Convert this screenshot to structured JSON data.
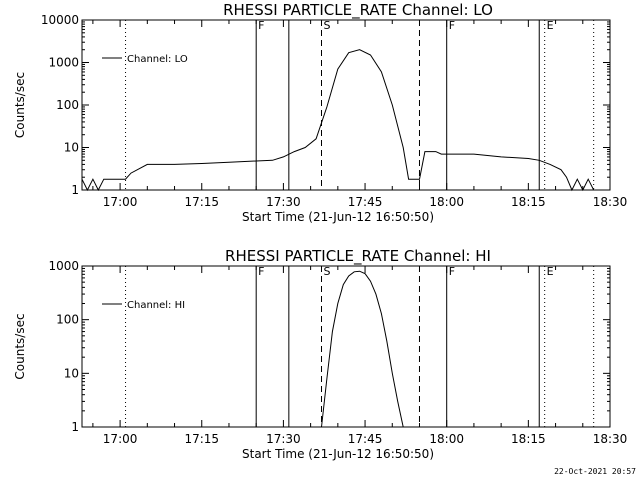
{
  "footer": {
    "timestamp": "22-Oct-2021 20:57"
  },
  "chart_data": [
    {
      "type": "line",
      "title": "RHESSI  PARTICLE_RATE  Channel:  LO",
      "xlabel": "Start Time (21-Jun-12 16:50:50)",
      "ylabel": "Counts/sec",
      "yscale": "log",
      "xlim": [
        "16:53",
        "18:30"
      ],
      "ylim": [
        1,
        10000
      ],
      "xticks": [
        "17:00",
        "17:15",
        "17:30",
        "17:45",
        "18:00",
        "18:15",
        "18:30"
      ],
      "yticks": [
        "1",
        "10",
        "100",
        "1000",
        "10000"
      ],
      "legend": {
        "label": "Channel: LO",
        "placement": "top-left"
      },
      "series": [
        {
          "name": "Channel: LO",
          "x": [
            "16:53",
            "16:54",
            "16:55",
            "16:56",
            "16:57",
            "16:58",
            "16:59",
            "17:00",
            "17:01",
            "17:02",
            "17:05",
            "17:10",
            "17:15",
            "17:20",
            "17:25",
            "17:28",
            "17:30",
            "17:32",
            "17:34",
            "17:36",
            "17:38",
            "17:40",
            "17:42",
            "17:44",
            "17:46",
            "17:48",
            "17:50",
            "17:52",
            "17:53",
            "17:54",
            "17:55",
            "17:56",
            "17:57",
            "17:58",
            "17:59",
            "18:00",
            "18:05",
            "18:10",
            "18:15",
            "18:17",
            "18:19",
            "18:21",
            "18:22",
            "18:23",
            "18:24",
            "18:25",
            "18:26",
            "18:27"
          ],
          "y": [
            1.8,
            1,
            1.8,
            1,
            1.8,
            1.8,
            1.8,
            1.8,
            1.8,
            2.5,
            4,
            4,
            4.2,
            4.5,
            4.8,
            5,
            6,
            8,
            10,
            16,
            90,
            700,
            1700,
            2000,
            1500,
            600,
            100,
            10,
            1.8,
            1.8,
            1.8,
            8,
            8,
            8,
            7,
            7,
            7,
            6,
            5.5,
            5,
            4,
            3,
            2,
            1,
            1.8,
            1,
            1.8,
            1
          ]
        }
      ],
      "annotations": [
        {
          "label": "F",
          "time": "17:25",
          "style": "solid"
        },
        {
          "label": "",
          "time": "17:31",
          "style": "solid"
        },
        {
          "label": "S",
          "time": "17:37",
          "style": "dashed"
        },
        {
          "label": "",
          "time": "17:55",
          "style": "dashed"
        },
        {
          "label": "F",
          "time": "18:00",
          "style": "solid"
        },
        {
          "label": "",
          "time": "18:17",
          "style": "solid"
        },
        {
          "label": "E",
          "time": "18:18",
          "style": "dotted"
        },
        {
          "label": "",
          "time": "17:01",
          "style": "dotted"
        },
        {
          "label": "",
          "time": "18:27",
          "style": "dotted"
        }
      ]
    },
    {
      "type": "line",
      "title": "RHESSI  PARTICLE_RATE  Channel:  HI",
      "xlabel": "Start Time (21-Jun-12 16:50:50)",
      "ylabel": "Counts/sec",
      "yscale": "log",
      "xlim": [
        "16:53",
        "18:30"
      ],
      "ylim": [
        1,
        1000
      ],
      "xticks": [
        "17:00",
        "17:15",
        "17:30",
        "17:45",
        "18:00",
        "18:15",
        "18:30"
      ],
      "yticks": [
        "1",
        "10",
        "100",
        "1000"
      ],
      "legend": {
        "label": "Channel: HI",
        "placement": "top-left"
      },
      "series": [
        {
          "name": "Channel: HI",
          "x": [
            "17:37",
            "17:38",
            "17:39",
            "17:40",
            "17:41",
            "17:42",
            "17:43",
            "17:44",
            "17:45",
            "17:46",
            "17:47",
            "17:48",
            "17:49",
            "17:50",
            "17:51",
            "17:52"
          ],
          "y": [
            1,
            8,
            60,
            200,
            450,
            650,
            780,
            800,
            720,
            520,
            300,
            130,
            40,
            10,
            3,
            1
          ]
        }
      ],
      "annotations": [
        {
          "label": "F",
          "time": "17:25",
          "style": "solid"
        },
        {
          "label": "",
          "time": "17:31",
          "style": "solid"
        },
        {
          "label": "S",
          "time": "17:37",
          "style": "dashed"
        },
        {
          "label": "",
          "time": "17:55",
          "style": "dashed"
        },
        {
          "label": "F",
          "time": "18:00",
          "style": "solid"
        },
        {
          "label": "",
          "time": "18:17",
          "style": "solid"
        },
        {
          "label": "E",
          "time": "18:18",
          "style": "dotted"
        },
        {
          "label": "",
          "time": "17:01",
          "style": "dotted"
        },
        {
          "label": "",
          "time": "18:27",
          "style": "dotted"
        }
      ]
    }
  ]
}
